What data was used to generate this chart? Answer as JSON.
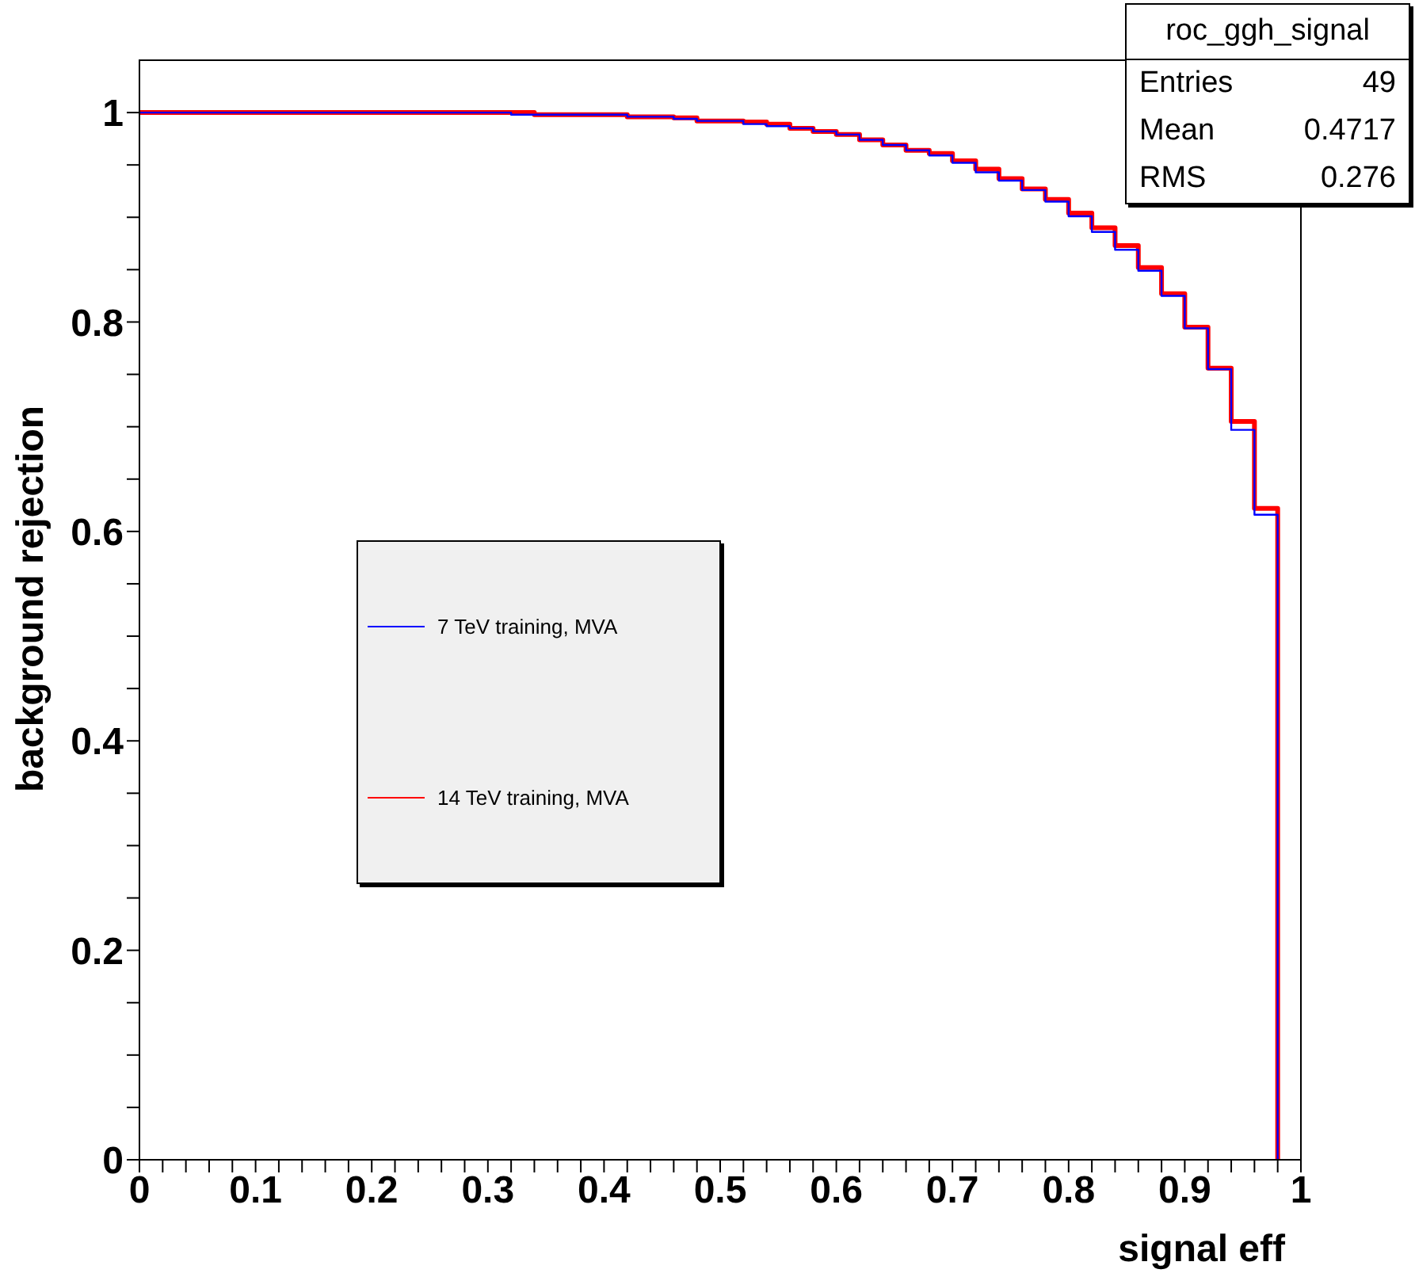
{
  "chart_data": {
    "type": "step",
    "xlabel": "signal eff",
    "ylabel": "background rejection",
    "annotations": [
      "roc_ggh_signal",
      "Entries 49",
      "Mean 0.4717",
      "RMS 0.276"
    ],
    "x": [
      0,
      0.02,
      0.04,
      0.06,
      0.08,
      0.1,
      0.12,
      0.14,
      0.16,
      0.18,
      0.2,
      0.22,
      0.24,
      0.26,
      0.28,
      0.3,
      0.32,
      0.34,
      0.36,
      0.38,
      0.4,
      0.42,
      0.44,
      0.46,
      0.48,
      0.5,
      0.52,
      0.54,
      0.56,
      0.58,
      0.6,
      0.62,
      0.64,
      0.66,
      0.68,
      0.7,
      0.72,
      0.74,
      0.76,
      0.78,
      0.8,
      0.82,
      0.84,
      0.86,
      0.88,
      0.9,
      0.92,
      0.94,
      0.96,
      0.98
    ],
    "series": [
      {
        "name": "7 TeV training, MVA",
        "color": "#0000ff",
        "values": [
          1,
          1,
          1,
          1,
          1,
          1,
          1,
          1,
          1,
          1,
          1,
          1,
          1,
          1,
          1,
          1,
          0.998,
          0.998,
          0.998,
          0.998,
          0.998,
          0.996,
          0.996,
          0.994,
          0.992,
          0.992,
          0.989,
          0.987,
          0.985,
          0.982,
          0.979,
          0.974,
          0.969,
          0.964,
          0.959,
          0.952,
          0.943,
          0.935,
          0.926,
          0.915,
          0.901,
          0.886,
          0.869,
          0.849,
          0.825,
          0.794,
          0.755,
          0.697,
          0.616,
          0
        ]
      },
      {
        "name": "14 TeV training, MVA",
        "color": "#ff0000",
        "values": [
          1,
          1,
          1,
          1,
          1,
          1,
          1,
          1,
          1,
          1,
          1,
          1,
          1,
          1,
          1,
          1,
          1,
          0.998,
          0.998,
          0.998,
          0.998,
          0.996,
          0.996,
          0.995,
          0.992,
          0.992,
          0.991,
          0.989,
          0.985,
          0.982,
          0.979,
          0.974,
          0.969,
          0.964,
          0.961,
          0.954,
          0.946,
          0.937,
          0.927,
          0.917,
          0.904,
          0.89,
          0.873,
          0.852,
          0.827,
          0.795,
          0.756,
          0.705,
          0.622,
          0
        ]
      }
    ],
    "xlim": [
      0,
      1
    ],
    "ylim": [
      0,
      1.05
    ],
    "xticks": [
      0,
      {
        "value": 0.02,
        "label": null
      },
      {
        "value": 0.04,
        "label": null
      },
      {
        "value": 0.06,
        "label": null
      },
      {
        "value": 0.08,
        "label": null
      },
      0.1,
      {
        "value": 0.12,
        "label": null
      },
      {
        "value": 0.14,
        "label": null
      },
      {
        "value": 0.16,
        "label": null
      },
      {
        "value": 0.18,
        "label": null
      },
      0.2,
      {
        "value": 0.22,
        "label": null
      },
      {
        "value": 0.24,
        "label": null
      },
      {
        "value": 0.26,
        "label": null
      },
      {
        "value": 0.28,
        "label": null
      },
      0.3,
      {
        "value": 0.32,
        "label": null
      },
      {
        "value": 0.34,
        "label": null
      },
      {
        "value": 0.36,
        "label": null
      },
      {
        "value": 0.38,
        "label": null
      },
      0.4,
      {
        "value": 0.42,
        "label": null
      },
      {
        "value": 0.44,
        "label": null
      },
      {
        "value": 0.46,
        "label": null
      },
      {
        "value": 0.48,
        "label": null
      },
      0.5,
      {
        "value": 0.52,
        "label": null
      },
      {
        "value": 0.54,
        "label": null
      },
      {
        "value": 0.56,
        "label": null
      },
      {
        "value": 0.58,
        "label": null
      },
      0.6,
      {
        "value": 0.62,
        "label": null
      },
      {
        "value": 0.64,
        "label": null
      },
      {
        "value": 0.66,
        "label": null
      },
      {
        "value": 0.68,
        "label": null
      },
      0.7,
      {
        "value": 0.72,
        "label": null
      },
      {
        "value": 0.74,
        "label": null
      },
      {
        "value": 0.76,
        "label": null
      },
      {
        "value": 0.78,
        "label": null
      },
      0.8,
      {
        "value": 0.82,
        "label": null
      },
      {
        "value": 0.84,
        "label": null
      },
      {
        "value": 0.86,
        "label": null
      },
      {
        "value": 0.88,
        "label": null
      },
      0.9,
      {
        "value": 0.92,
        "label": null
      },
      {
        "value": 0.94,
        "label": null
      },
      {
        "value": 0.96,
        "label": null
      },
      {
        "value": 0.98,
        "label": null
      },
      1
    ],
    "yticks": [
      0,
      {
        "value": 0.05,
        "label": null
      },
      {
        "value": 0.1,
        "label": null
      },
      {
        "value": 0.15,
        "label": null
      },
      0.2,
      {
        "value": 0.25,
        "label": null
      },
      {
        "value": 0.3,
        "label": null
      },
      {
        "value": 0.35,
        "label": null
      },
      0.4,
      {
        "value": 0.45,
        "label": null
      },
      {
        "value": 0.5,
        "label": null
      },
      {
        "value": 0.55,
        "label": null
      },
      0.6,
      {
        "value": 0.65,
        "label": null
      },
      {
        "value": 0.7,
        "label": null
      },
      {
        "value": 0.75,
        "label": null
      },
      0.8,
      {
        "value": 0.85,
        "label": null
      },
      {
        "value": 0.9,
        "label": null
      },
      {
        "value": 0.95,
        "label": null
      },
      1
    ],
    "legend": "left",
    "grid": false
  }
}
